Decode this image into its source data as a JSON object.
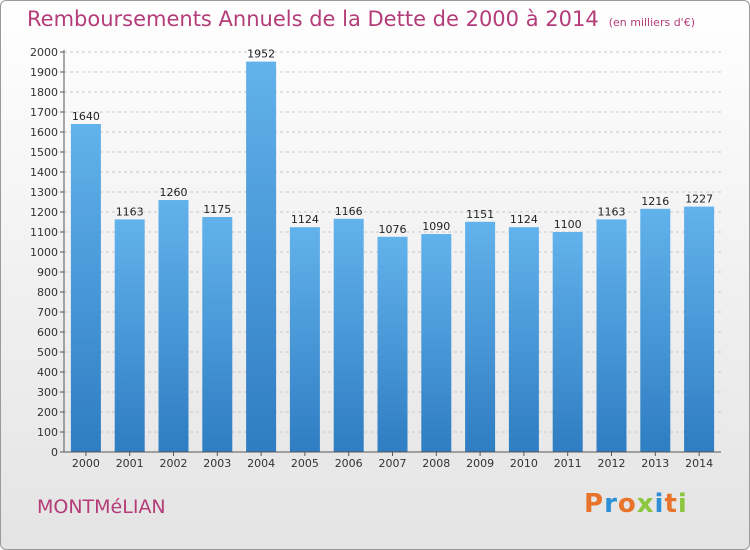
{
  "title": "Remboursements Annuels de la Dette de 2000 à 2014",
  "subtitle": "(en milliers d'€)",
  "city": "MONTMéLIAN",
  "brand": {
    "text": "Proxiti",
    "colors": [
      "#e8732a",
      "#2d8fd5",
      "#e8732a",
      "#8cc63f",
      "#2d8fd5",
      "#e8732a",
      "#8cc63f"
    ]
  },
  "colors": {
    "bar_light": "#62b2ec",
    "bar_dark": "#2f7dc2",
    "title": "#b43c78"
  },
  "chart_data": {
    "type": "bar",
    "categories": [
      "2000",
      "2001",
      "2002",
      "2003",
      "2004",
      "2005",
      "2006",
      "2007",
      "2008",
      "2009",
      "2010",
      "2011",
      "2012",
      "2013",
      "2014"
    ],
    "values": [
      1640,
      1163,
      1260,
      1175,
      1952,
      1124,
      1166,
      1076,
      1090,
      1151,
      1124,
      1100,
      1163,
      1216,
      1227
    ],
    "ylim": [
      0,
      2000
    ],
    "ytick_step": 100,
    "grid": true,
    "title": "Remboursements Annuels de la Dette de 2000 à 2014",
    "xlabel": "",
    "ylabel": ""
  }
}
